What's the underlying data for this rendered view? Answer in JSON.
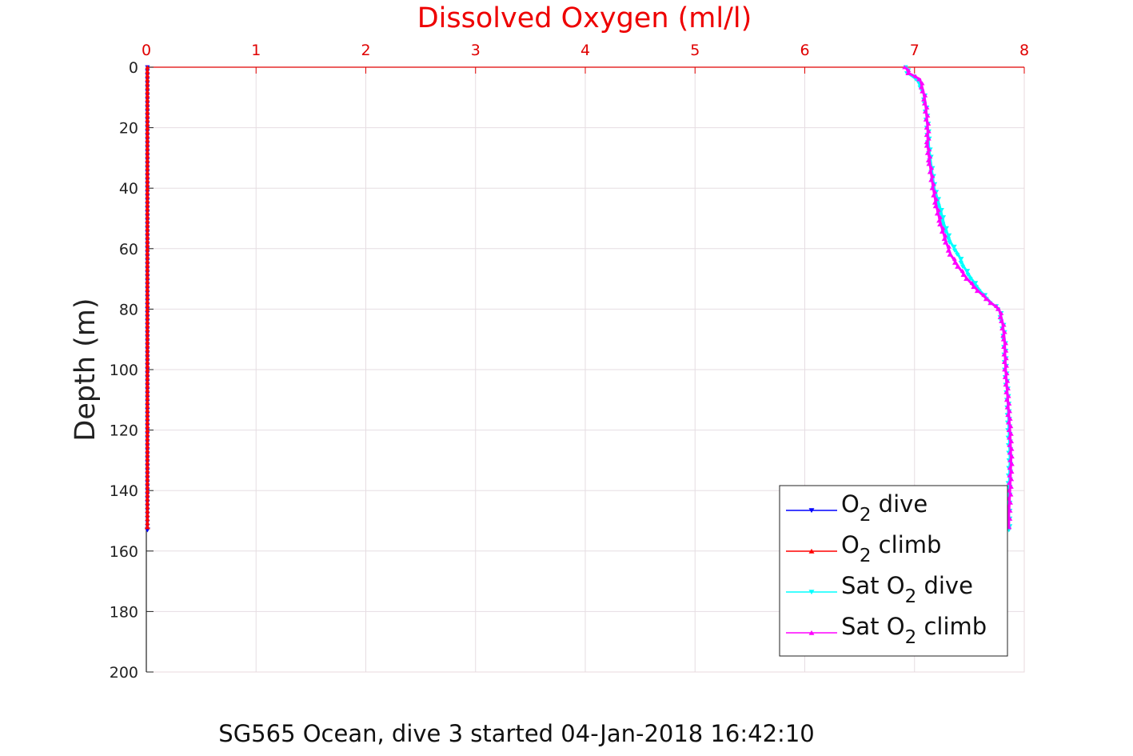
{
  "chart_data": {
    "type": "line",
    "title": "Dissolved Oxygen (ml/l)",
    "xlabel": "Dissolved Oxygen (ml/l)",
    "ylabel": "Depth (m)",
    "caption": "SG565 Ocean, dive 3 started 04-Jan-2018 16:42:10",
    "xlim": [
      0,
      8
    ],
    "ylim": [
      0,
      200
    ],
    "y_reversed": true,
    "x_axis_position": "top",
    "grid": true,
    "legend_placement": "bottom-right",
    "x_ticks": [
      "0",
      "1",
      "2",
      "3",
      "4",
      "5",
      "6",
      "7",
      "8"
    ],
    "y_ticks": [
      "0",
      "20",
      "40",
      "60",
      "80",
      "100",
      "120",
      "140",
      "160",
      "180",
      "200"
    ],
    "series": [
      {
        "name": "O2 dive",
        "legend": {
          "prefix": "O",
          "sub": "2",
          "suffix": " dive"
        },
        "color": "#0000ff",
        "marker": "triangle-down",
        "depth": [
          0,
          20,
          40,
          60,
          80,
          100,
          120,
          140,
          153
        ],
        "value": [
          0.01,
          0.01,
          0.01,
          0.01,
          0.01,
          0.01,
          0.01,
          0.01,
          0.01
        ]
      },
      {
        "name": "O2 climb",
        "legend": {
          "prefix": "O",
          "sub": "2",
          "suffix": " climb"
        },
        "color": "#ff0000",
        "marker": "triangle-up",
        "depth": [
          0,
          20,
          40,
          60,
          80,
          100,
          120,
          140,
          152
        ],
        "value": [
          0.01,
          0.01,
          0.01,
          0.01,
          0.01,
          0.01,
          0.01,
          0.01,
          0.01
        ]
      },
      {
        "name": "Sat O2 dive",
        "legend": {
          "prefix": "Sat O",
          "sub": "2",
          "suffix": " dive"
        },
        "color": "#00ffff",
        "marker": "triangle-down",
        "depth": [
          0,
          2,
          4,
          8,
          12,
          20,
          26,
          32,
          40,
          46,
          52,
          58,
          62,
          66,
          70,
          74,
          78,
          80,
          84,
          90,
          100,
          110,
          120,
          130,
          140,
          148,
          153
        ],
        "value": [
          6.93,
          6.94,
          7.02,
          7.08,
          7.1,
          7.12,
          7.13,
          7.15,
          7.18,
          7.23,
          7.27,
          7.33,
          7.4,
          7.45,
          7.52,
          7.6,
          7.7,
          7.77,
          7.8,
          7.82,
          7.83,
          7.85,
          7.86,
          7.87,
          7.86,
          7.86,
          7.86
        ]
      },
      {
        "name": "Sat O2 climb",
        "legend": {
          "prefix": "Sat O",
          "sub": "2",
          "suffix": " climb"
        },
        "color": "#ff00ff",
        "marker": "triangle-up",
        "depth": [
          0,
          2,
          4,
          8,
          12,
          20,
          26,
          32,
          40,
          46,
          52,
          58,
          62,
          66,
          70,
          74,
          78,
          80,
          84,
          90,
          100,
          110,
          120,
          130,
          140,
          148,
          152
        ],
        "value": [
          6.92,
          6.95,
          7.05,
          7.08,
          7.1,
          7.12,
          7.12,
          7.14,
          7.17,
          7.2,
          7.24,
          7.29,
          7.33,
          7.4,
          7.48,
          7.58,
          7.7,
          7.77,
          7.8,
          7.82,
          7.83,
          7.85,
          7.87,
          7.88,
          7.87,
          7.86,
          7.86
        ]
      }
    ]
  }
}
